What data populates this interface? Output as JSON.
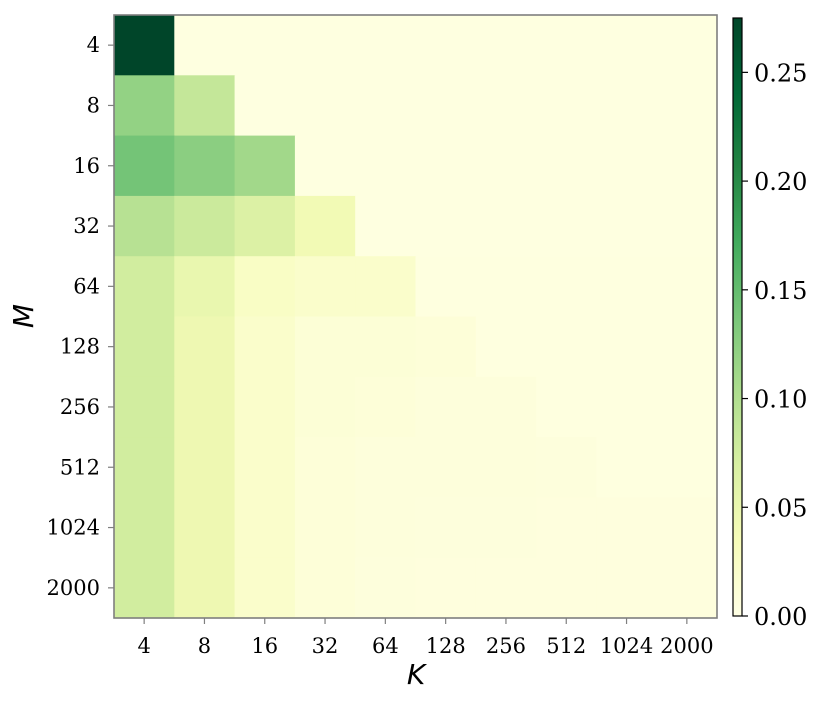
{
  "chart_data": {
    "type": "heatmap",
    "xlabel": "K",
    "ylabel": "M",
    "x_categories": [
      "4",
      "8",
      "16",
      "32",
      "64",
      "128",
      "256",
      "512",
      "1024",
      "2000"
    ],
    "y_categories": [
      "4",
      "8",
      "16",
      "32",
      "64",
      "128",
      "256",
      "512",
      "1024",
      "2000"
    ],
    "values": [
      [
        0.275,
        0.004,
        0.004,
        0.004,
        0.004,
        0.004,
        0.004,
        0.004,
        0.004,
        0.004
      ],
      [
        0.12,
        0.085,
        0.004,
        0.004,
        0.004,
        0.004,
        0.004,
        0.004,
        0.004,
        0.004
      ],
      [
        0.14,
        0.125,
        0.11,
        0.004,
        0.004,
        0.004,
        0.004,
        0.004,
        0.004,
        0.004
      ],
      [
        0.095,
        0.08,
        0.065,
        0.04,
        0.004,
        0.004,
        0.004,
        0.004,
        0.004,
        0.004
      ],
      [
        0.075,
        0.05,
        0.025,
        0.02,
        0.02,
        0.005,
        0.005,
        0.005,
        0.005,
        0.005
      ],
      [
        0.075,
        0.045,
        0.02,
        0.012,
        0.012,
        0.01,
        0.005,
        0.005,
        0.005,
        0.005
      ],
      [
        0.075,
        0.045,
        0.02,
        0.012,
        0.01,
        0.008,
        0.008,
        0.005,
        0.005,
        0.005
      ],
      [
        0.075,
        0.045,
        0.02,
        0.01,
        0.008,
        0.008,
        0.008,
        0.007,
        0.005,
        0.005
      ],
      [
        0.075,
        0.045,
        0.02,
        0.01,
        0.008,
        0.007,
        0.007,
        0.006,
        0.006,
        0.006
      ],
      [
        0.075,
        0.045,
        0.02,
        0.01,
        0.007,
        0.006,
        0.006,
        0.006,
        0.006,
        0.006
      ]
    ],
    "vmin": 0.0,
    "vmax": 0.275,
    "colormap": "YlGn",
    "colorbar_ticks": [
      "0.00",
      "0.05",
      "0.10",
      "0.15",
      "0.20",
      "0.25"
    ],
    "colorbar_tick_values": [
      0.0,
      0.05,
      0.1,
      0.15,
      0.2,
      0.25
    ],
    "grid": false,
    "colorbar_position": "right"
  }
}
